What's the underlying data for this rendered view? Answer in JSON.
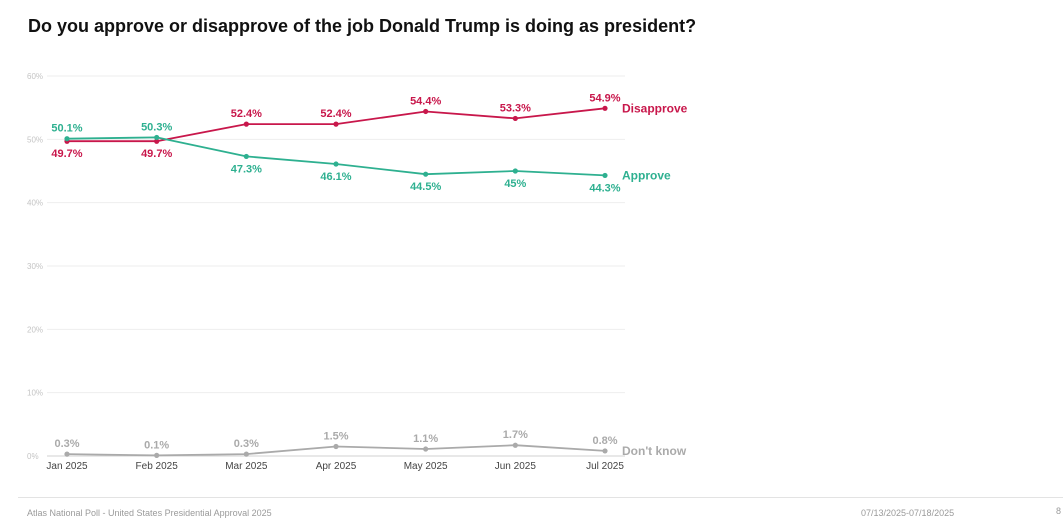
{
  "header": {
    "title": "Do you approve or disapprove of the job Donald Trump is doing as president?"
  },
  "footer": {
    "source": "Atlas National Poll - United States Presidential Approval 2025",
    "date_range": "07/13/2025-07/18/2025",
    "page": "8"
  },
  "chart_data": {
    "type": "line",
    "title": "Do you approve or disapprove of the job Donald Trump is doing as president?",
    "categories": [
      "Jan 2025",
      "Feb 2025",
      "Mar 2025",
      "Apr 2025",
      "May 2025",
      "Jun 2025",
      "Jul 2025"
    ],
    "y_ticks": [
      0,
      10,
      20,
      30,
      40,
      50,
      60
    ],
    "y_tick_labels": [
      "0%",
      "10%",
      "20%",
      "30%",
      "40%",
      "50%",
      "60%"
    ],
    "ylim": [
      0,
      60
    ],
    "grid": true,
    "xlabel": "",
    "ylabel": "",
    "series": [
      {
        "name": "Disapprove",
        "color": "#c8174b",
        "values": [
          49.7,
          49.7,
          52.4,
          52.4,
          54.4,
          53.3,
          54.9
        ],
        "labels": [
          "49.7%",
          "49.7%",
          "52.4%",
          "52.4%",
          "54.4%",
          "53.3%",
          "54.9%"
        ],
        "label_pos": [
          "below",
          "below",
          "above",
          "above",
          "above",
          "above",
          "above"
        ]
      },
      {
        "name": "Approve",
        "color": "#2eb090",
        "values": [
          50.1,
          50.3,
          47.3,
          46.1,
          44.5,
          45,
          44.3
        ],
        "labels": [
          "50.1%",
          "50.3%",
          "47.3%",
          "46.1%",
          "44.5%",
          "45%",
          "44.3%"
        ],
        "label_pos": [
          "above",
          "above",
          "below",
          "below",
          "below",
          "below",
          "below"
        ]
      },
      {
        "name": "Don't know",
        "color": "#aaaaaa",
        "values": [
          0.3,
          0.1,
          0.3,
          1.5,
          1.1,
          1.7,
          0.8
        ],
        "labels": [
          "0.3%",
          "0.1%",
          "0.3%",
          "1.5%",
          "1.1%",
          "1.7%",
          "0.8%"
        ],
        "label_pos": [
          "above",
          "above",
          "above",
          "above",
          "above",
          "above",
          "above"
        ]
      }
    ]
  }
}
